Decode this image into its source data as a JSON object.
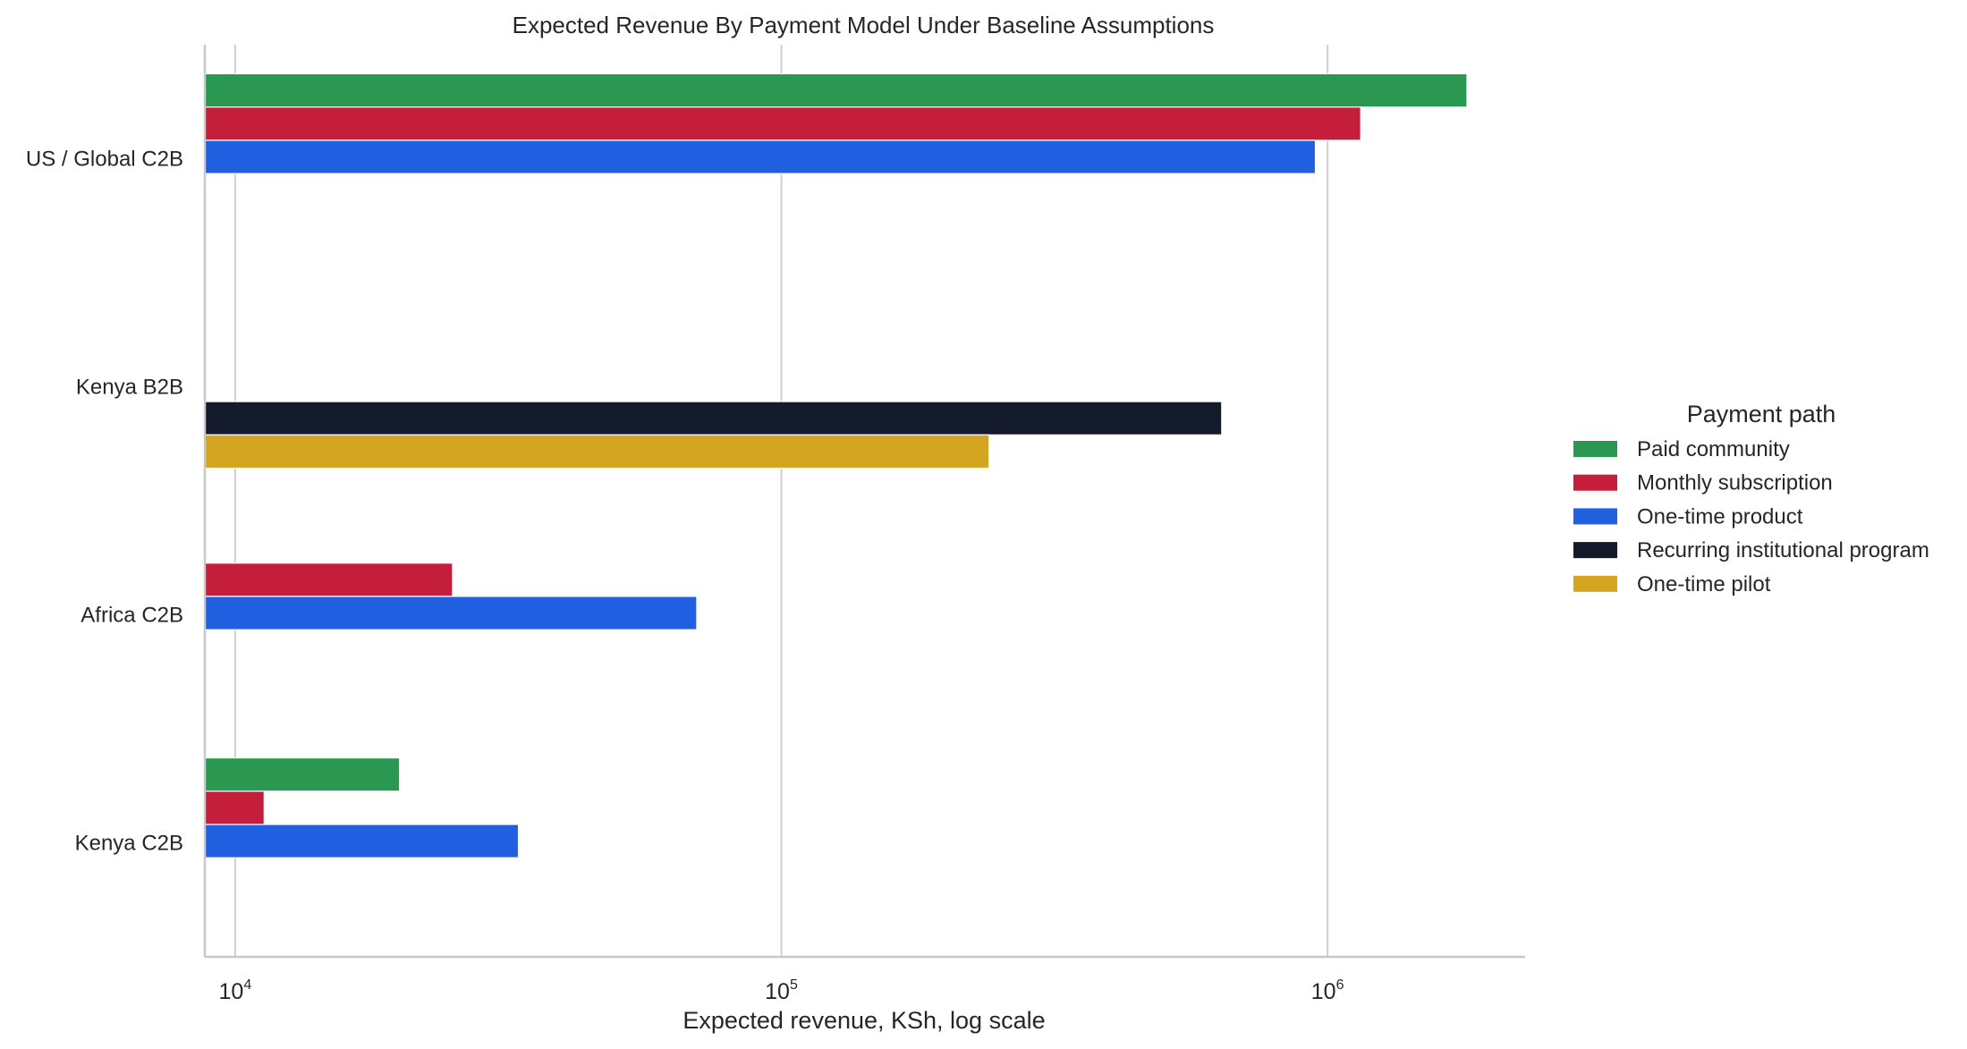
{
  "chart_data": {
    "type": "bar",
    "orientation": "horizontal",
    "title": "Expected Revenue By Payment Model Under Baseline Assumptions",
    "xlabel": "Expected revenue, KSh, log scale",
    "ylabel": "",
    "xscale": "log",
    "xlim": [
      8800,
      2300000
    ],
    "xticks": [
      {
        "base": "10",
        "exp": "4",
        "value": 10000
      },
      {
        "base": "10",
        "exp": "5",
        "value": 100000
      },
      {
        "base": "10",
        "exp": "6",
        "value": 1000000
      }
    ],
    "grid": "vertical",
    "categories": [
      "US / Global C2B",
      "Kenya B2B",
      "Africa C2B",
      "Kenya C2B"
    ],
    "legend_title": "Payment path",
    "legend_position": "right",
    "series": [
      {
        "name": "Paid community",
        "color": "#2a9850",
        "values": [
          1800000,
          null,
          null,
          20000
        ]
      },
      {
        "name": "Monthly subscription",
        "color": "#c41e3a",
        "values": [
          1150000,
          null,
          25000,
          11300
        ]
      },
      {
        "name": "One-time product",
        "color": "#1f5fe0",
        "values": [
          950000,
          null,
          70000,
          33000
        ]
      },
      {
        "name": "Recurring institutional program",
        "color": "#131a2a",
        "values": [
          null,
          640000,
          null,
          null
        ]
      },
      {
        "name": "One-time pilot",
        "color": "#d4a521",
        "values": [
          null,
          240000,
          null,
          null
        ]
      }
    ]
  }
}
